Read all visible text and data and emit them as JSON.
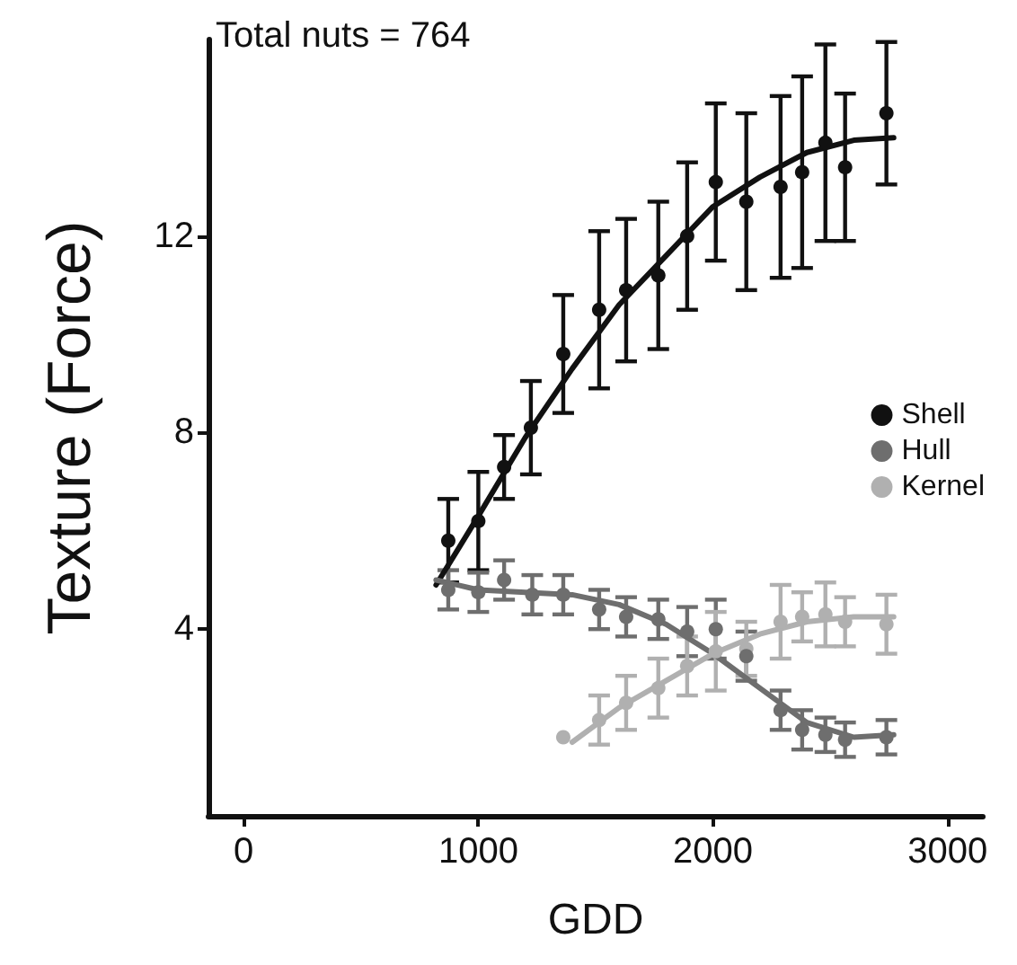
{
  "chart_data": {
    "type": "scatter",
    "xlabel": "GDD",
    "ylabel": "Texture (Force)",
    "annotations": [
      "Total nuts = 764"
    ],
    "xlim": [
      -150,
      3150
    ],
    "xticks": [
      0,
      1000,
      2000,
      3000
    ],
    "ylim": [
      0.2,
      16
    ],
    "yticks": [
      4,
      8,
      12
    ],
    "grid": false,
    "legend": "right",
    "marker": "circle",
    "series": [
      {
        "name": "Shell",
        "color": "#111111",
        "x": [
          872,
          1000,
          1110,
          1224,
          1362,
          1515,
          1630,
          1767,
          1890,
          2012,
          2142,
          2288,
          2380,
          2479,
          2563,
          2739
        ],
        "values": [
          5.8,
          6.2,
          7.3,
          8.1,
          9.6,
          10.5,
          10.9,
          11.2,
          12.0,
          13.1,
          12.7,
          13.0,
          13.3,
          13.9,
          13.4,
          14.5
        ],
        "errors": [
          0.85,
          1.0,
          0.65,
          0.95,
          1.2,
          1.6,
          1.45,
          1.5,
          1.5,
          1.6,
          1.8,
          1.85,
          1.95,
          2.0,
          1.5,
          1.45
        ]
      },
      {
        "name": "Hull",
        "color": "#6e6e6e",
        "x": [
          872,
          1000,
          1110,
          1230,
          1362,
          1515,
          1630,
          1767,
          1890,
          2012,
          2142,
          2288,
          2380,
          2479,
          2563,
          2739
        ],
        "values": [
          4.8,
          4.75,
          5.0,
          4.7,
          4.7,
          4.4,
          4.25,
          4.2,
          3.95,
          4.0,
          3.45,
          2.35,
          1.95,
          1.85,
          1.75,
          1.8
        ],
        "errors": [
          0.4,
          0.4,
          0.4,
          0.4,
          0.4,
          0.4,
          0.4,
          0.4,
          0.5,
          0.6,
          0.5,
          0.4,
          0.4,
          0.35,
          0.35,
          0.35
        ]
      },
      {
        "name": "Kernel",
        "color": "#b0b0b0",
        "x": [
          1362,
          1515,
          1630,
          1767,
          1890,
          2012,
          2142,
          2288,
          2380,
          2479,
          2563,
          2739
        ],
        "values": [
          1.8,
          2.15,
          2.5,
          2.8,
          3.25,
          3.55,
          3.6,
          4.15,
          4.25,
          4.3,
          4.15,
          4.1
        ],
        "errors": [
          null,
          0.5,
          0.55,
          0.6,
          0.6,
          0.8,
          0.55,
          0.75,
          0.5,
          0.65,
          0.5,
          0.6
        ]
      },
      {
        "type": "line",
        "marker": "none",
        "color": "#111111",
        "x": [
          820,
          1000,
          1200,
          1400,
          1600,
          1800,
          2000,
          2200,
          2400,
          2600,
          2770
        ],
        "values": [
          4.9,
          6.3,
          7.9,
          9.3,
          10.6,
          11.6,
          12.6,
          13.2,
          13.7,
          13.95,
          14.0
        ]
      },
      {
        "type": "line",
        "marker": "none",
        "color": "#6e6e6e",
        "x": [
          820,
          1000,
          1400,
          1600,
          1800,
          2000,
          2200,
          2400,
          2600,
          2770
        ],
        "values": [
          5.0,
          4.8,
          4.7,
          4.5,
          4.1,
          3.5,
          2.8,
          2.1,
          1.8,
          1.85
        ]
      },
      {
        "type": "line",
        "marker": "none",
        "color": "#b0b0b0",
        "x": [
          1400,
          1600,
          1800,
          2000,
          2200,
          2400,
          2600,
          2770
        ],
        "values": [
          1.7,
          2.4,
          2.95,
          3.5,
          3.9,
          4.15,
          4.25,
          4.25
        ]
      }
    ]
  }
}
